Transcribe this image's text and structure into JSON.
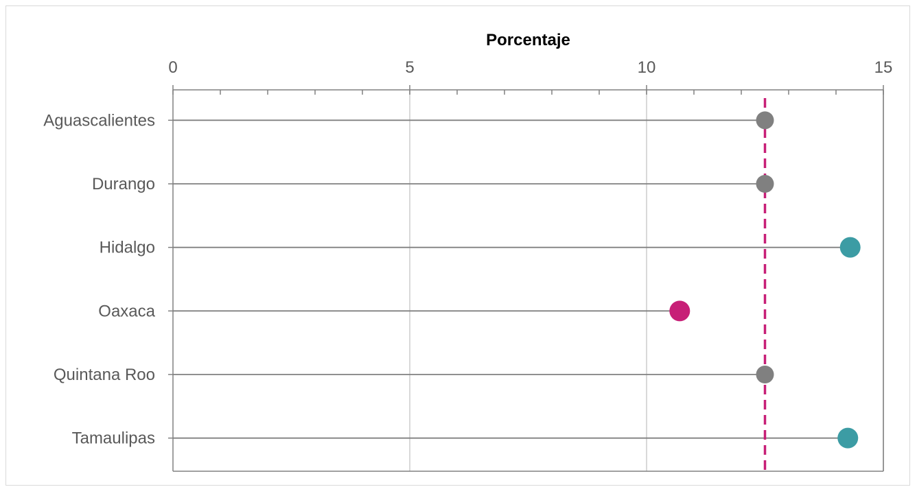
{
  "chart_data": {
    "type": "scatter",
    "subtype": "lollipop",
    "title": "",
    "xlabel": "Porcentaje",
    "ylabel": "",
    "xlim": [
      0,
      15
    ],
    "x_ticks": [
      0,
      5,
      10,
      15
    ],
    "x_minor_step": 1,
    "grid": true,
    "x_axis_position": "top",
    "categories": [
      "Aguascalientes",
      "Durango",
      "Hidalgo",
      "Oaxaca",
      "Quintana Roo",
      "Tamaulipas"
    ],
    "values": [
      12.5,
      12.5,
      14.3,
      10.7,
      12.5,
      14.25
    ],
    "point_colors": [
      "#808080",
      "#808080",
      "#3c9ca4",
      "#c71f77",
      "#808080",
      "#3c9ca4"
    ],
    "reference_line": {
      "value": 12.5,
      "style": "dashed",
      "color": "#c71f77"
    },
    "colors": {
      "stem": "#808080",
      "grid": "#d9d9d9",
      "axis": "#808080"
    }
  }
}
